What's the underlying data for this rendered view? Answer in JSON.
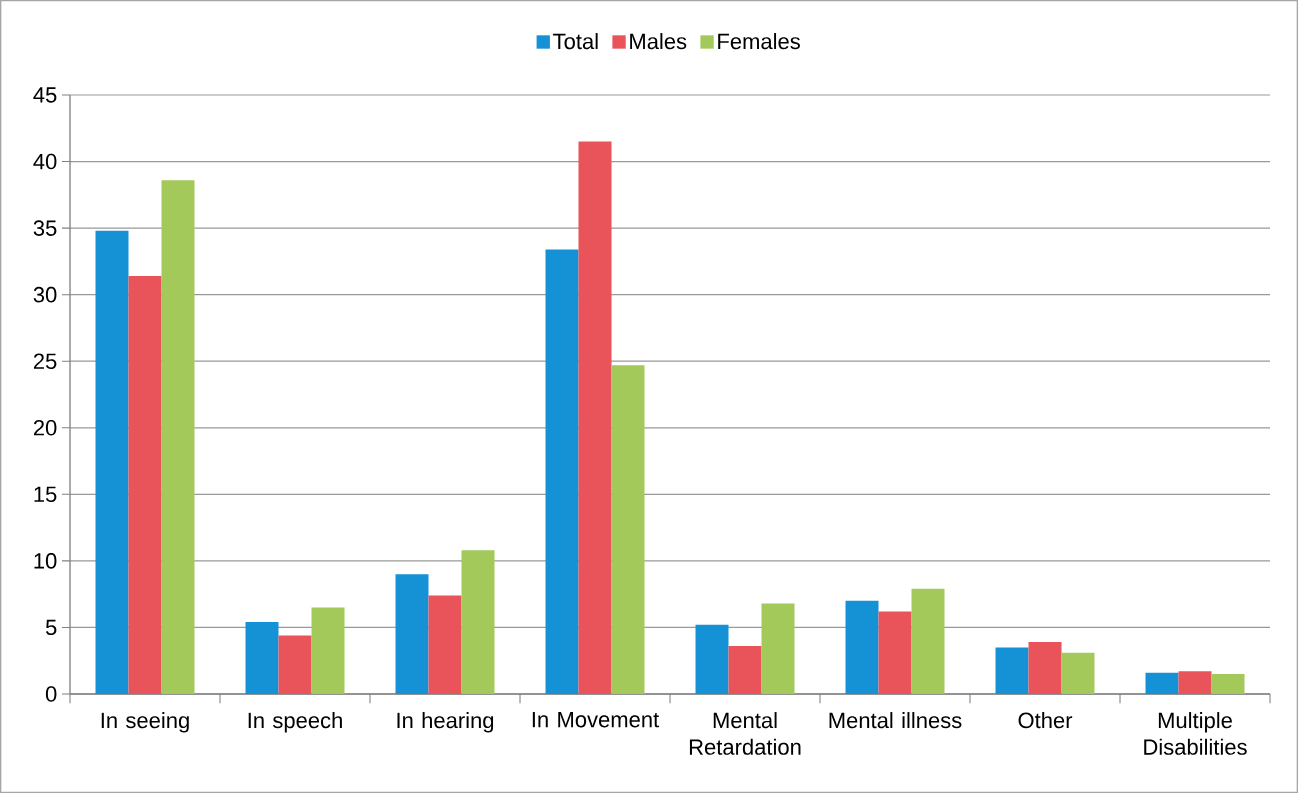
{
  "chart_data": {
    "type": "bar",
    "categories": [
      "In seeing",
      "In speech",
      "In hearing",
      "In Movement",
      "Mental Retardation",
      "Mental illness",
      "Other",
      "Multiple Disabilities"
    ],
    "series": [
      {
        "name": "Total",
        "color": "#1591d6",
        "values": [
          34.8,
          5.4,
          9.0,
          33.4,
          5.2,
          7.0,
          3.5,
          1.6
        ]
      },
      {
        "name": "Males",
        "color": "#e8545a",
        "values": [
          31.4,
          4.4,
          7.4,
          41.5,
          3.6,
          6.2,
          3.9,
          1.7
        ]
      },
      {
        "name": "Females",
        "color": "#a2c95a",
        "values": [
          38.6,
          6.5,
          10.8,
          24.7,
          6.8,
          7.9,
          3.1,
          1.5
        ]
      }
    ],
    "ylim": [
      0,
      45
    ],
    "yticks": [
      0,
      5,
      10,
      15,
      20,
      25,
      30,
      35,
      40,
      45
    ],
    "grid": "y",
    "legend": "top"
  }
}
